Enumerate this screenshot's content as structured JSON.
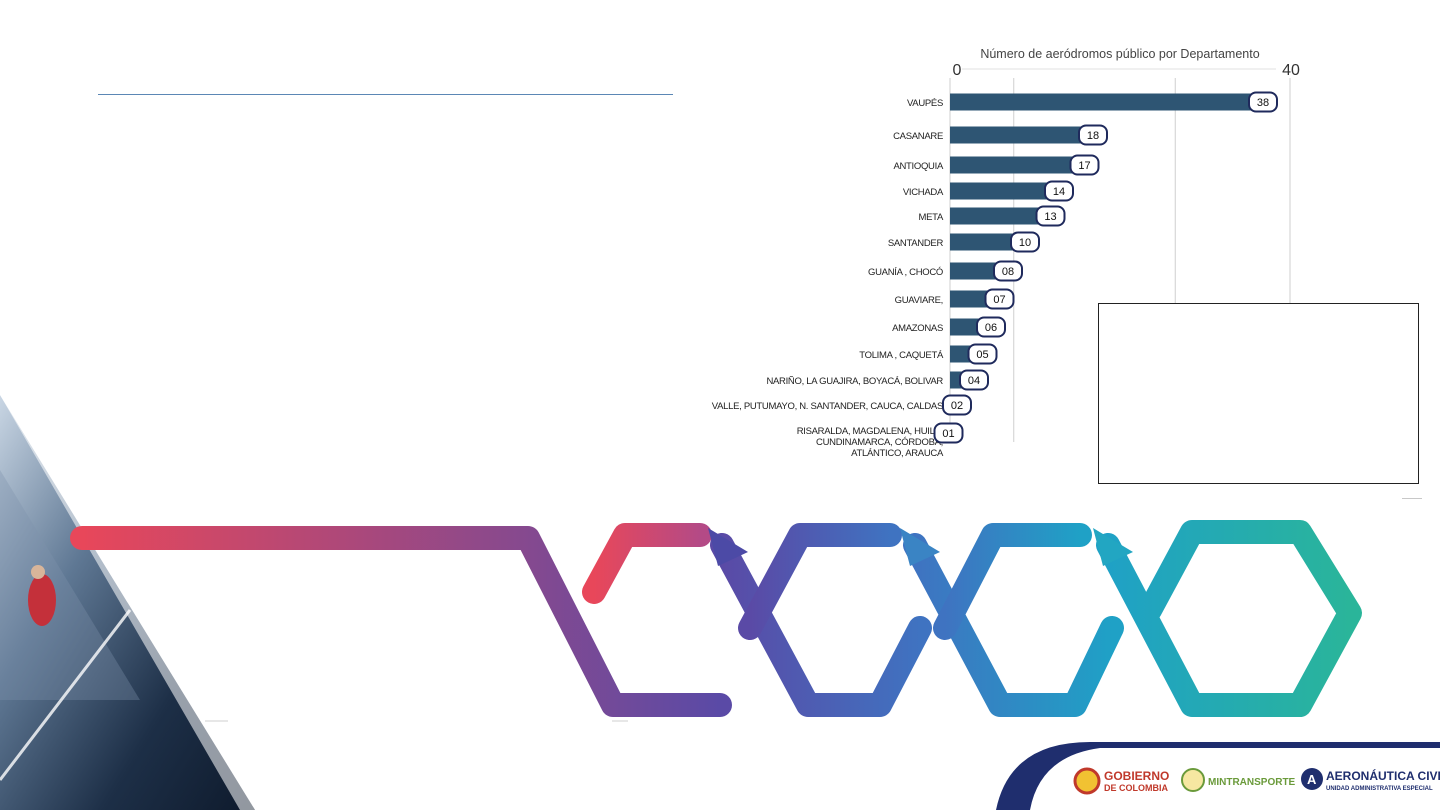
{
  "chart_data": {
    "type": "bar",
    "orientation": "horizontal",
    "title": "Número de aeródromos público por Departamento",
    "xlim": [
      0,
      40
    ],
    "x_tick_labels": [
      "0",
      "40"
    ],
    "grid": true,
    "categories": [
      [
        "VAUPÉS"
      ],
      [
        "CASANARE"
      ],
      [
        "ANTIOQUIA"
      ],
      [
        "VICHADA"
      ],
      [
        "META"
      ],
      [
        "SANTANDER"
      ],
      [
        "GUANÍA , CHOCÓ"
      ],
      [
        "GUAVIARE,"
      ],
      [
        "AMAZONAS"
      ],
      [
        "TOLIMA , CAQUETÁ"
      ],
      [
        "NARIÑO, LA GUAJIRA, BOYACÁ, BOLIVAR"
      ],
      [
        "VALLE, PUTUMAYO, N. SANTANDER, CAUCA, CALDAS"
      ],
      [
        "RISARALDA, MAGDALENA, HUILA,",
        "CUNDINAMARCA, CÓRDOBA,",
        "ATLÁNTICO, ARAUCA"
      ]
    ],
    "values": [
      38,
      18,
      17,
      14,
      13,
      10,
      8,
      7,
      6,
      5,
      4,
      2,
      1
    ],
    "data_labels": [
      "38",
      "18",
      "17",
      "14",
      "13",
      "10",
      "08",
      "07",
      "06",
      "05",
      "04",
      "02",
      "01"
    ],
    "bar_color": "#2e5573",
    "label_border_color": "#1f2a5c"
  },
  "logos": {
    "gobierno_line1": "GOBIERNO",
    "gobierno_line2": "DE COLOMBIA",
    "mintransporte": "MINTRANSPORTE",
    "aeronautica_line1": "AERONÁUTICA CIVIL",
    "aeronautica_line2": "UNIDAD ADMINISTRATIVA ESPECIAL"
  },
  "colors": {
    "ribbon_red": "#e8475a",
    "ribbon_purple": "#5a4aa6",
    "ribbon_blue": "#3f73c1",
    "ribbon_cyan": "#1fa1c6",
    "ribbon_teal": "#2ab59a",
    "navy": "#1f2e6e"
  }
}
